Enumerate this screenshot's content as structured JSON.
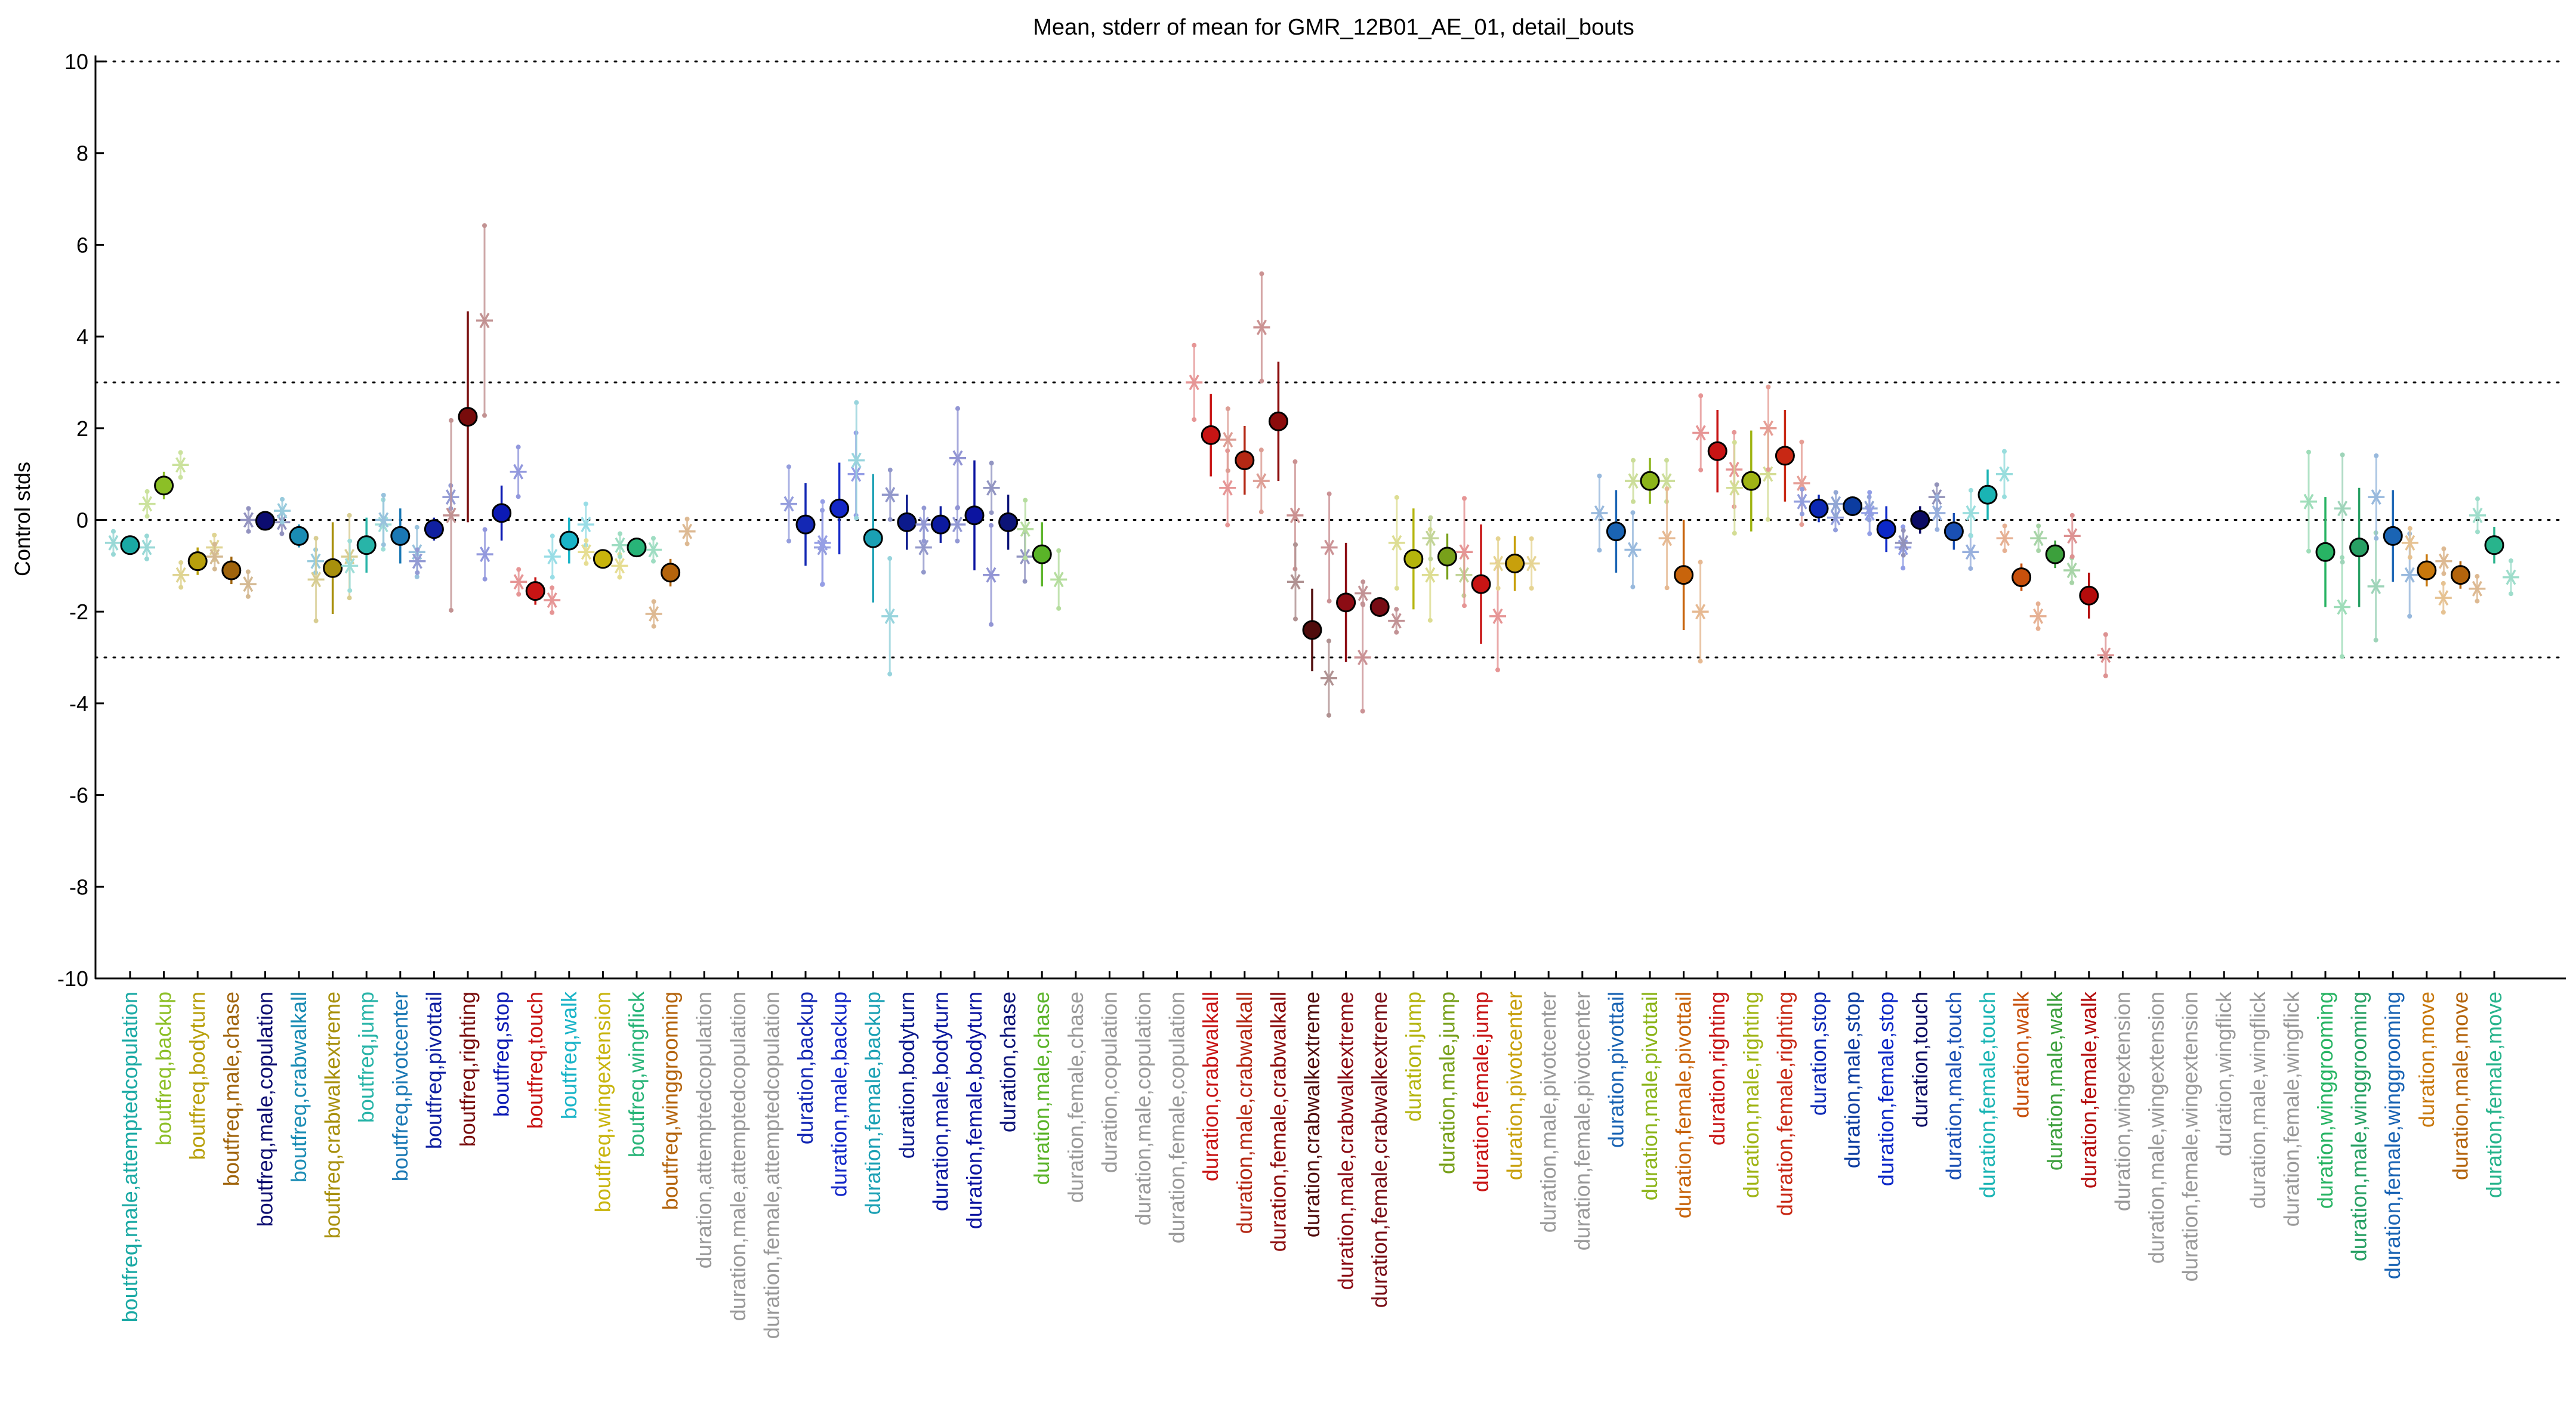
{
  "chart_data": {
    "type": "scatter",
    "title": "Mean, stderr of mean for GMR_12B01_AE_01, detail_bouts",
    "xlabel": "",
    "ylabel": "Control stds",
    "ylim": [
      -10,
      10
    ],
    "yticks": [
      -10,
      -8,
      -6,
      -4,
      -2,
      0,
      2,
      4,
      6,
      8,
      10
    ],
    "reference_lines": [
      -10,
      -3,
      0,
      3,
      10
    ],
    "grid": false,
    "legend": "none",
    "categories": [
      {
        "label": "boutfreq,male,attemptedcopulation",
        "color": "#1aa9a4",
        "mean": -0.55,
        "sem": 0.15,
        "sub": [
          -0.5,
          -0.6
        ]
      },
      {
        "label": "boutfreq,backup",
        "color": "#8cbf26",
        "mean": 0.75,
        "sem": 0.3,
        "sub": [
          0.35,
          1.2
        ]
      },
      {
        "label": "boutfreq,bodyturn",
        "color": "#b8a00c",
        "mean": -0.9,
        "sem": 0.3,
        "sub": [
          -1.2,
          -0.6
        ]
      },
      {
        "label": "boutfreq,male,chase",
        "color": "#a0640c",
        "mean": -1.1,
        "sem": 0.3,
        "sub": [
          -0.8,
          -1.4
        ]
      },
      {
        "label": "boutfreq,male,copulation",
        "color": "#0c0c70",
        "mean": -0.02,
        "sem": 0.05,
        "sub": [
          0.0,
          -0.05
        ]
      },
      {
        "label": "boutfreq,crabwalkall",
        "color": "#1a8cb4",
        "mean": -0.35,
        "sem": 0.25,
        "sub": [
          0.2,
          -0.9
        ]
      },
      {
        "label": "boutfreq,crabwalkextreme",
        "color": "#a8900c",
        "mean": -1.05,
        "sem": 1.0,
        "sub": [
          -1.3,
          -0.8
        ]
      },
      {
        "label": "boutfreq,jump",
        "color": "#28b4a8",
        "mean": -0.55,
        "sem": 0.6,
        "sub": [
          -1.0,
          -0.1
        ]
      },
      {
        "label": "boutfreq,pivotcenter",
        "color": "#1a78b4",
        "mean": -0.35,
        "sem": 0.6,
        "sub": [
          0.0,
          -0.7
        ]
      },
      {
        "label": "boutfreq,pivottail",
        "color": "#1020a0",
        "mean": -0.2,
        "sem": 0.25,
        "sub": [
          -0.9,
          0.5
        ]
      },
      {
        "label": "boutfreq,righting",
        "color": "#780c0c",
        "mean": 2.25,
        "sem": 2.3,
        "sub": [
          0.1,
          4.35
        ]
      },
      {
        "label": "boutfreq,stop",
        "color": "#0c1ab4",
        "mean": 0.15,
        "sem": 0.6,
        "sub": [
          -0.75,
          1.05
        ]
      },
      {
        "label": "boutfreq,touch",
        "color": "#c81414",
        "mean": -1.55,
        "sem": 0.3,
        "sub": [
          -1.35,
          -1.75
        ]
      },
      {
        "label": "boutfreq,walk",
        "color": "#1ab4c8",
        "mean": -0.45,
        "sem": 0.5,
        "sub": [
          -0.8,
          -0.1
        ]
      },
      {
        "label": "boutfreq,wingextension",
        "color": "#c8b40c",
        "mean": -0.85,
        "sem": 0.15,
        "sub": [
          -0.7,
          -1.0
        ]
      },
      {
        "label": "boutfreq,wingflick",
        "color": "#28b478",
        "mean": -0.6,
        "sem": 0.1,
        "sub": [
          -0.55,
          -0.65
        ]
      },
      {
        "label": "boutfreq,winggrooming",
        "color": "#b4640c",
        "mean": -1.15,
        "sem": 0.3,
        "sub": [
          -2.05,
          -0.25
        ]
      },
      {
        "label": "duration,attemptedcopulation",
        "color": "#999999",
        "mean": null,
        "sem": null,
        "sub": []
      },
      {
        "label": "duration,male,attemptedcopulation",
        "color": "#999999",
        "mean": null,
        "sem": null,
        "sub": []
      },
      {
        "label": "duration,female,attemptedcopulation",
        "color": "#999999",
        "mean": null,
        "sem": null,
        "sub": []
      },
      {
        "label": "duration,backup",
        "color": "#1428b4",
        "mean": -0.1,
        "sem": 0.9,
        "sub": [
          0.35,
          -0.6
        ]
      },
      {
        "label": "duration,male,backup",
        "color": "#1428c8",
        "mean": 0.25,
        "sem": 1.0,
        "sub": [
          -0.5,
          1.0
        ]
      },
      {
        "label": "duration,female,backup",
        "color": "#1aa0b4",
        "mean": -0.4,
        "sem": 1.4,
        "sub": [
          1.3,
          -2.1
        ]
      },
      {
        "label": "duration,bodyturn",
        "color": "#0c1a8c",
        "mean": -0.05,
        "sem": 0.6,
        "sub": [
          0.55,
          -0.6
        ]
      },
      {
        "label": "duration,male,bodyturn",
        "color": "#0c1aa0",
        "mean": -0.1,
        "sem": 0.4,
        "sub": [
          -0.1,
          -0.1
        ]
      },
      {
        "label": "duration,female,bodyturn",
        "color": "#0c14a0",
        "mean": 0.1,
        "sem": 1.2,
        "sub": [
          1.35,
          -1.2
        ]
      },
      {
        "label": "duration,chase",
        "color": "#0c1478",
        "mean": -0.05,
        "sem": 0.6,
        "sub": [
          0.7,
          -0.8
        ]
      },
      {
        "label": "duration,male,chase",
        "color": "#5ab428",
        "mean": -0.75,
        "sem": 0.7,
        "sub": [
          -0.2,
          -1.3
        ]
      },
      {
        "label": "duration,female,chase",
        "color": "#999999",
        "mean": null,
        "sem": null,
        "sub": []
      },
      {
        "label": "duration,copulation",
        "color": "#999999",
        "mean": null,
        "sem": null,
        "sub": []
      },
      {
        "label": "duration,male,copulation",
        "color": "#999999",
        "mean": null,
        "sem": null,
        "sub": []
      },
      {
        "label": "duration,female,copulation",
        "color": "#999999",
        "mean": null,
        "sem": null,
        "sub": []
      },
      {
        "label": "duration,crabwalkall",
        "color": "#c81414",
        "mean": 1.85,
        "sem": 0.9,
        "sub": [
          3.0,
          0.7
        ]
      },
      {
        "label": "duration,male,crabwalkall",
        "color": "#b42814",
        "mean": 1.3,
        "sem": 0.75,
        "sub": [
          1.75,
          0.85
        ]
      },
      {
        "label": "duration,female,crabwalkall",
        "color": "#8c0c0c",
        "mean": 2.15,
        "sem": 1.3,
        "sub": [
          4.2,
          0.1
        ]
      },
      {
        "label": "duration,crabwalkextreme",
        "color": "#500c0c",
        "mean": -2.4,
        "sem": 0.9,
        "sub": [
          -1.35,
          -3.45
        ]
      },
      {
        "label": "duration,male,crabwalkextreme",
        "color": "#8c0c14",
        "mean": -1.8,
        "sem": 1.3,
        "sub": [
          -0.6,
          -3.0
        ]
      },
      {
        "label": "duration,female,crabwalkextreme",
        "color": "#780c14",
        "mean": -1.9,
        "sem": 0.2,
        "sub": [
          -1.6,
          -2.2
        ]
      },
      {
        "label": "duration,jump",
        "color": "#b4b40c",
        "mean": -0.85,
        "sem": 1.1,
        "sub": [
          -0.5,
          -1.2
        ]
      },
      {
        "label": "duration,male,jump",
        "color": "#78a01a",
        "mean": -0.8,
        "sem": 0.5,
        "sub": [
          -0.4,
          -1.2
        ]
      },
      {
        "label": "duration,female,jump",
        "color": "#c81414",
        "mean": -1.4,
        "sem": 1.3,
        "sub": [
          -0.7,
          -2.1
        ]
      },
      {
        "label": "duration,pivotcenter",
        "color": "#c8a00c",
        "mean": -0.95,
        "sem": 0.6,
        "sub": [
          -0.95,
          -0.95
        ]
      },
      {
        "label": "duration,male,pivotcenter",
        "color": "#999999",
        "mean": null,
        "sem": null,
        "sub": []
      },
      {
        "label": "duration,female,pivotcenter",
        "color": "#999999",
        "mean": null,
        "sem": null,
        "sub": []
      },
      {
        "label": "duration,pivottail",
        "color": "#1a64b4",
        "mean": -0.25,
        "sem": 0.9,
        "sub": [
          0.15,
          -0.65
        ]
      },
      {
        "label": "duration,male,pivottail",
        "color": "#8cb41a",
        "mean": 0.85,
        "sem": 0.5,
        "sub": [
          0.85,
          0.85
        ]
      },
      {
        "label": "duration,female,pivottail",
        "color": "#c8640c",
        "mean": -1.2,
        "sem": 1.2,
        "sub": [
          -0.4,
          -2.0
        ]
      },
      {
        "label": "duration,righting",
        "color": "#c81414",
        "mean": 1.5,
        "sem": 0.9,
        "sub": [
          1.9,
          1.1
        ]
      },
      {
        "label": "duration,male,righting",
        "color": "#a0b414",
        "mean": 0.85,
        "sem": 1.1,
        "sub": [
          0.7,
          1.0
        ]
      },
      {
        "label": "duration,female,righting",
        "color": "#c82814",
        "mean": 1.4,
        "sem": 1.0,
        "sub": [
          2.0,
          0.8
        ]
      },
      {
        "label": "duration,stop",
        "color": "#0c28b4",
        "mean": 0.25,
        "sem": 0.3,
        "sub": [
          0.4,
          0.05
        ]
      },
      {
        "label": "duration,male,stop",
        "color": "#0c3ca0",
        "mean": 0.3,
        "sem": 0.15,
        "sub": [
          0.35,
          0.25
        ]
      },
      {
        "label": "duration,female,stop",
        "color": "#0c28c8",
        "mean": -0.2,
        "sem": 0.5,
        "sub": [
          0.15,
          -0.6
        ]
      },
      {
        "label": "duration,touch",
        "color": "#0c0c64",
        "mean": 0.0,
        "sem": 0.3,
        "sub": [
          -0.5,
          0.5
        ]
      },
      {
        "label": "duration,male,touch",
        "color": "#1a50b4",
        "mean": -0.25,
        "sem": 0.4,
        "sub": [
          0.15,
          -0.7
        ]
      },
      {
        "label": "duration,female,touch",
        "color": "#1ab4b4",
        "mean": 0.55,
        "sem": 0.55,
        "sub": [
          0.15,
          1.0
        ]
      },
      {
        "label": "duration,walk",
        "color": "#c8500c",
        "mean": -1.25,
        "sem": 0.3,
        "sub": [
          -0.4,
          -2.1
        ]
      },
      {
        "label": "duration,male,walk",
        "color": "#3ca03c",
        "mean": -0.75,
        "sem": 0.3,
        "sub": [
          -0.4,
          -1.1
        ]
      },
      {
        "label": "duration,female,walk",
        "color": "#b40c0c",
        "mean": -1.65,
        "sem": 0.5,
        "sub": [
          -0.35,
          -2.95
        ]
      },
      {
        "label": "duration,wingextension",
        "color": "#999999",
        "mean": null,
        "sem": null,
        "sub": []
      },
      {
        "label": "duration,male,wingextension",
        "color": "#999999",
        "mean": null,
        "sem": null,
        "sub": []
      },
      {
        "label": "duration,female,wingextension",
        "color": "#999999",
        "mean": null,
        "sem": null,
        "sub": []
      },
      {
        "label": "duration,wingflick",
        "color": "#999999",
        "mean": null,
        "sem": null,
        "sub": []
      },
      {
        "label": "duration,male,wingflick",
        "color": "#999999",
        "mean": null,
        "sem": null,
        "sub": []
      },
      {
        "label": "duration,female,wingflick",
        "color": "#999999",
        "mean": null,
        "sem": null,
        "sub": []
      },
      {
        "label": "duration,winggrooming",
        "color": "#28b464",
        "mean": -0.7,
        "sem": 1.2,
        "sub": [
          0.4,
          -1.9
        ]
      },
      {
        "label": "duration,male,winggrooming",
        "color": "#28a064",
        "mean": -0.6,
        "sem": 1.3,
        "sub": [
          0.25,
          -1.45
        ]
      },
      {
        "label": "duration,female,winggrooming",
        "color": "#1a64b4",
        "mean": -0.35,
        "sem": 1.0,
        "sub": [
          0.5,
          -1.2
        ]
      },
      {
        "label": "duration,move",
        "color": "#c8780c",
        "mean": -1.1,
        "sem": 0.35,
        "sub": [
          -0.5,
          -1.7
        ]
      },
      {
        "label": "duration,male,move",
        "color": "#b4640c",
        "mean": -1.2,
        "sem": 0.3,
        "sub": [
          -0.9,
          -1.5
        ]
      },
      {
        "label": "duration,female,move",
        "color": "#28b48c",
        "mean": -0.55,
        "sem": 0.4,
        "sub": [
          0.1,
          -1.25
        ]
      }
    ]
  }
}
